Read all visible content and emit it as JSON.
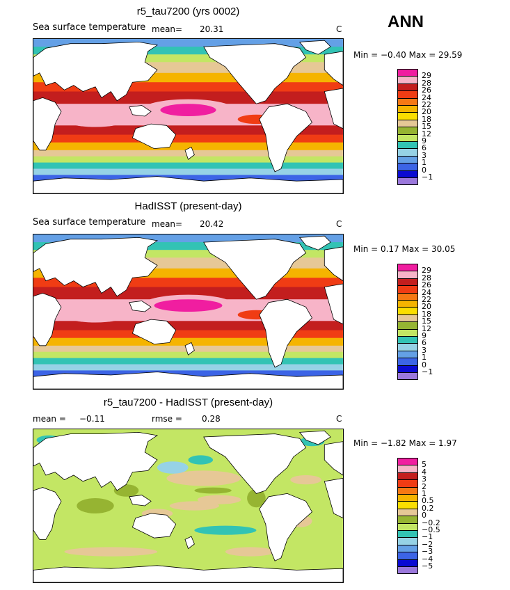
{
  "season": "ANN",
  "units": "C",
  "panels": [
    {
      "title": "r5_tau7200 (yrs 0002)",
      "subtitle": "Sea surface temperature",
      "stat1_label": "mean=",
      "stat1_value": "20.31",
      "stat2_label": "",
      "stat2_value": "",
      "minmax": "Min =  −0.40 Max =   29.59",
      "palette": "abs",
      "labels": [
        "29",
        "28",
        "26",
        "24",
        "22",
        "20",
        "18",
        "15",
        "12",
        "9",
        "6",
        "3",
        "1",
        "0",
        "−1"
      ]
    },
    {
      "title": "HadISST (present-day)",
      "subtitle": "Sea surface temperature",
      "stat1_label": "mean=",
      "stat1_value": "20.42",
      "stat2_label": "",
      "stat2_value": "",
      "minmax": "Min =   0.17 Max =   30.05",
      "palette": "abs",
      "labels": [
        "29",
        "28",
        "26",
        "24",
        "22",
        "20",
        "18",
        "15",
        "12",
        "9",
        "6",
        "3",
        "1",
        "0",
        "−1"
      ]
    },
    {
      "title": "r5_tau7200 - HadISST (present-day)",
      "subtitle": "",
      "stat1_label": "mean =",
      "stat1_value": "−0.11",
      "stat2_label": "rmse =",
      "stat2_value": "0.28",
      "minmax": "Min =  −1.82 Max =    1.97",
      "palette": "diff",
      "labels": [
        "5",
        "4",
        "3",
        "2",
        "1",
        "0.5",
        "0.2",
        "0",
        "−0.2",
        "−0.5",
        "−1",
        "−2",
        "−3",
        "−4",
        "−5"
      ]
    }
  ],
  "colors": {
    "abs": [
      "#f01ea0",
      "#f7b4c8",
      "#c31e1e",
      "#f03c14",
      "#f57814",
      "#f5b400",
      "#fade00",
      "#e6c896",
      "#96b432",
      "#c3e664",
      "#32c3b4",
      "#96d2e6",
      "#64a0e6",
      "#3c64e6",
      "#0a0ad2",
      "#9b78dc"
    ],
    "diff": [
      "#f01ea0",
      "#f7b4c8",
      "#c31e1e",
      "#f03c14",
      "#f57814",
      "#f5b400",
      "#fade00",
      "#e6c896",
      "#96b432",
      "#c3e664",
      "#32c3b4",
      "#96d2e6",
      "#64a0e6",
      "#3c64e6",
      "#0a0ad2",
      "#9b78dc"
    ]
  }
}
